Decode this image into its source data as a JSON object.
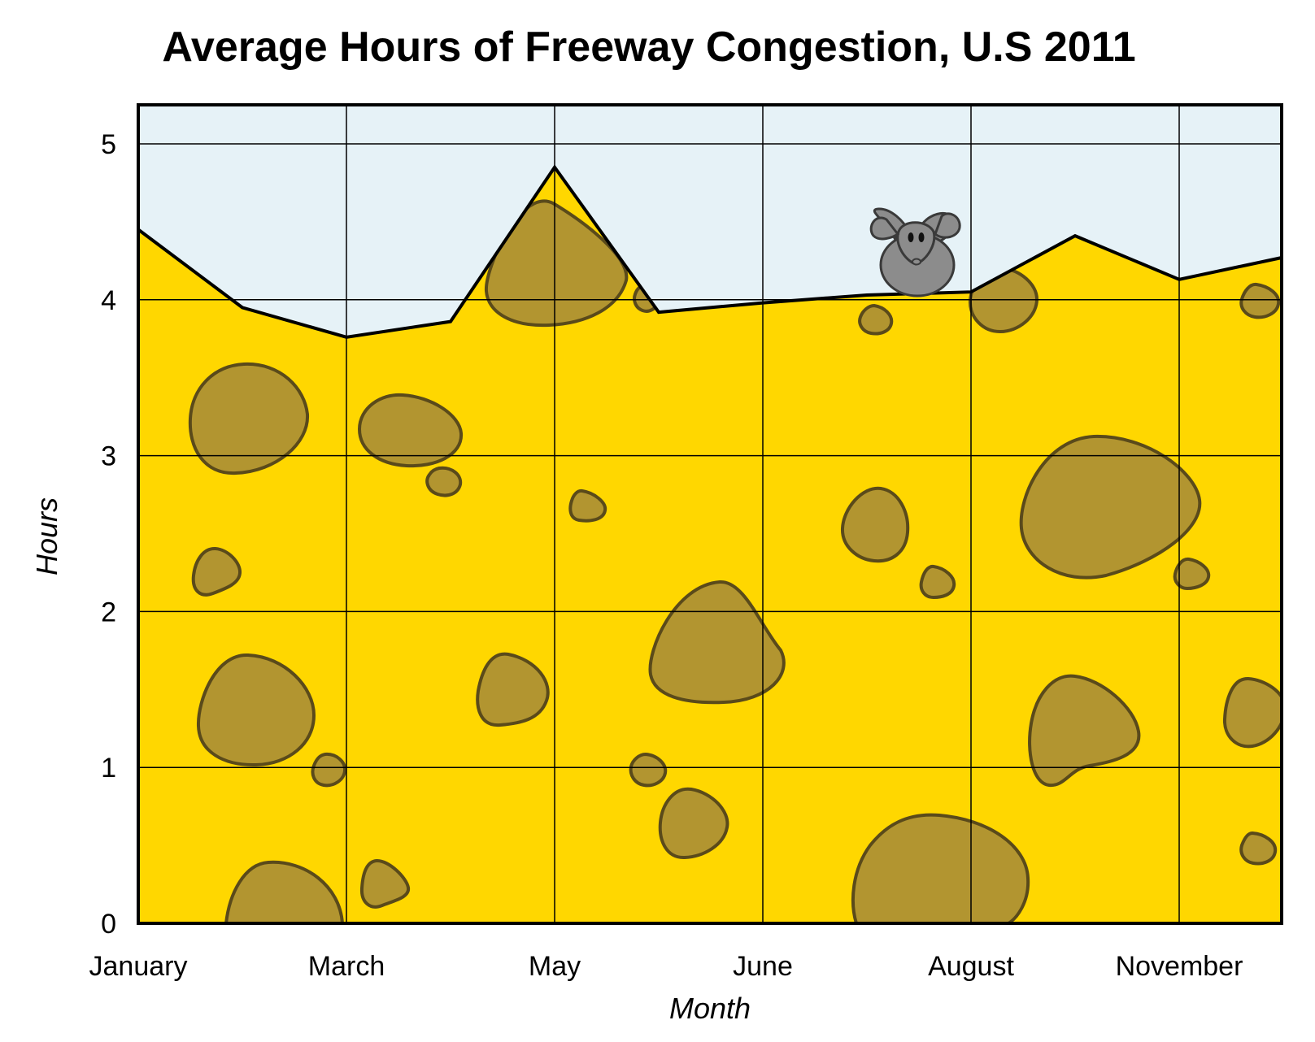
{
  "chart_data": {
    "type": "area",
    "title": "Average Hours of Freeway Congestion, U.S 2011",
    "xlabel": "Month",
    "ylabel": "Hours",
    "tick_labels": [
      "January",
      "March",
      "May",
      "June",
      "August",
      "November"
    ],
    "x": [
      0,
      0.5,
      1,
      1.5,
      2,
      2.5,
      3,
      3.5,
      4,
      4.5,
      5,
      5.5
    ],
    "values": [
      4.45,
      3.95,
      3.76,
      3.86,
      4.85,
      3.92,
      3.98,
      4.03,
      4.05,
      4.41,
      4.13,
      4.27
    ],
    "ylim": [
      0,
      5.25
    ],
    "yticks": [
      0,
      1,
      2,
      3,
      4,
      5
    ],
    "grid": true,
    "colors": {
      "fill": "#FFD700",
      "background": "#E6F2F7",
      "holes": "#B29530",
      "line": "#000000"
    }
  }
}
